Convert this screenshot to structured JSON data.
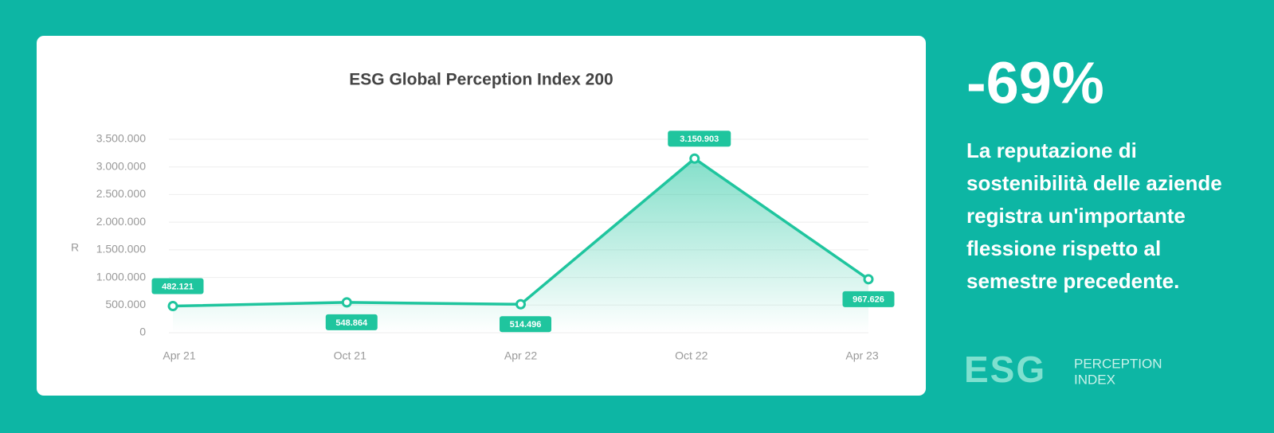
{
  "chart_data": {
    "type": "line",
    "title": "ESG Global Perception Index 200",
    "y_label": "R",
    "categories": [
      "Apr 21",
      "Oct 21",
      "Apr 22",
      "Oct 22",
      "Apr 23"
    ],
    "values": [
      482121,
      548864,
      514496,
      3150903,
      967626
    ],
    "value_labels": [
      "482.121",
      "548.864",
      "514.496",
      "3.150.903",
      "967.626"
    ],
    "color": "#1fc59e",
    "ylim": [
      0,
      3500000
    ],
    "yticks": [
      0,
      {
        "value": 500000,
        "label": "500.000"
      },
      {
        "value": 1000000,
        "label": "1.000.000"
      },
      {
        "value": 1500000,
        "label": "1.500.000"
      },
      {
        "value": 2000000,
        "label": "2.000.000"
      },
      {
        "value": 2500000,
        "label": "2.500.000"
      },
      {
        "value": 3000000,
        "label": "3.000.000"
      },
      {
        "value": 3500000,
        "label": "3.500.000"
      }
    ],
    "grid": true
  },
  "panel": {
    "headline": "-69%",
    "text_lines": [
      "La reputazione di",
      "sostenibilità delle aziende",
      "registra un'importante",
      "flessione rispetto al",
      "semestre precedente."
    ],
    "logo": {
      "mark": "ESG",
      "line1": "PERCEPTION",
      "line2": "INDEX"
    }
  }
}
